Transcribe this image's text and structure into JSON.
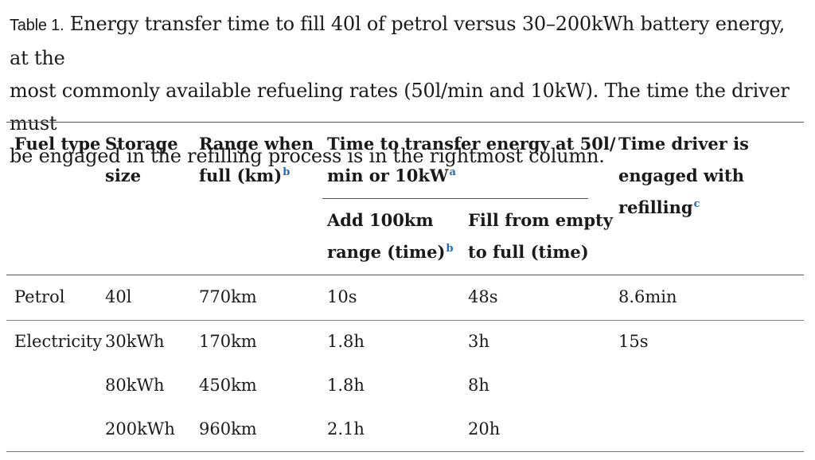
{
  "caption": {
    "label": "Table 1.",
    "line1": " Energy transfer time to fill 40l of petrol versus 30–200kWh battery energy, at the",
    "line2": "most commonly available refueling rates (50l/min and 10kW). The time the driver must",
    "line3": "be engaged in the refilling process is in the rightmost column."
  },
  "headers": {
    "fuel_type": "Fuel type",
    "storage_line1": "Storage",
    "storage_line2": "size",
    "range_line1": "Range when",
    "range_line2": "full (km)",
    "range_sup": "b",
    "transfer_line1": "Time to transfer energy at 50l/",
    "transfer_line2": "min or 10kW",
    "transfer_sup": "a",
    "add_line1": "Add 100km",
    "add_line2": "range (time)",
    "add_sup": "b",
    "fill_line1": "Fill from empty",
    "fill_line2": "to full (time)",
    "driver_line1": "Time driver is",
    "driver_line2": "engaged with",
    "driver_line3": "refilling",
    "driver_sup": "c"
  },
  "rows": [
    {
      "fuel": "Petrol",
      "storage": "40l",
      "range": "770km",
      "add": "10s",
      "fill": "48s",
      "driver": "8.6min"
    },
    {
      "fuel": "Electricity",
      "storage": "30kWh",
      "range": "170km",
      "add": "1.8h",
      "fill": "3h",
      "driver": "15s"
    },
    {
      "fuel": "",
      "storage": "80kWh",
      "range": "450km",
      "add": "1.8h",
      "fill": "8h",
      "driver": ""
    },
    {
      "fuel": "",
      "storage": "200kWh",
      "range": "960km",
      "add": "2.1h",
      "fill": "20h",
      "driver": ""
    }
  ],
  "colors": {
    "text": "#1a1a1a",
    "footnote_link": "#1f6fb5",
    "rule": "#555555"
  }
}
